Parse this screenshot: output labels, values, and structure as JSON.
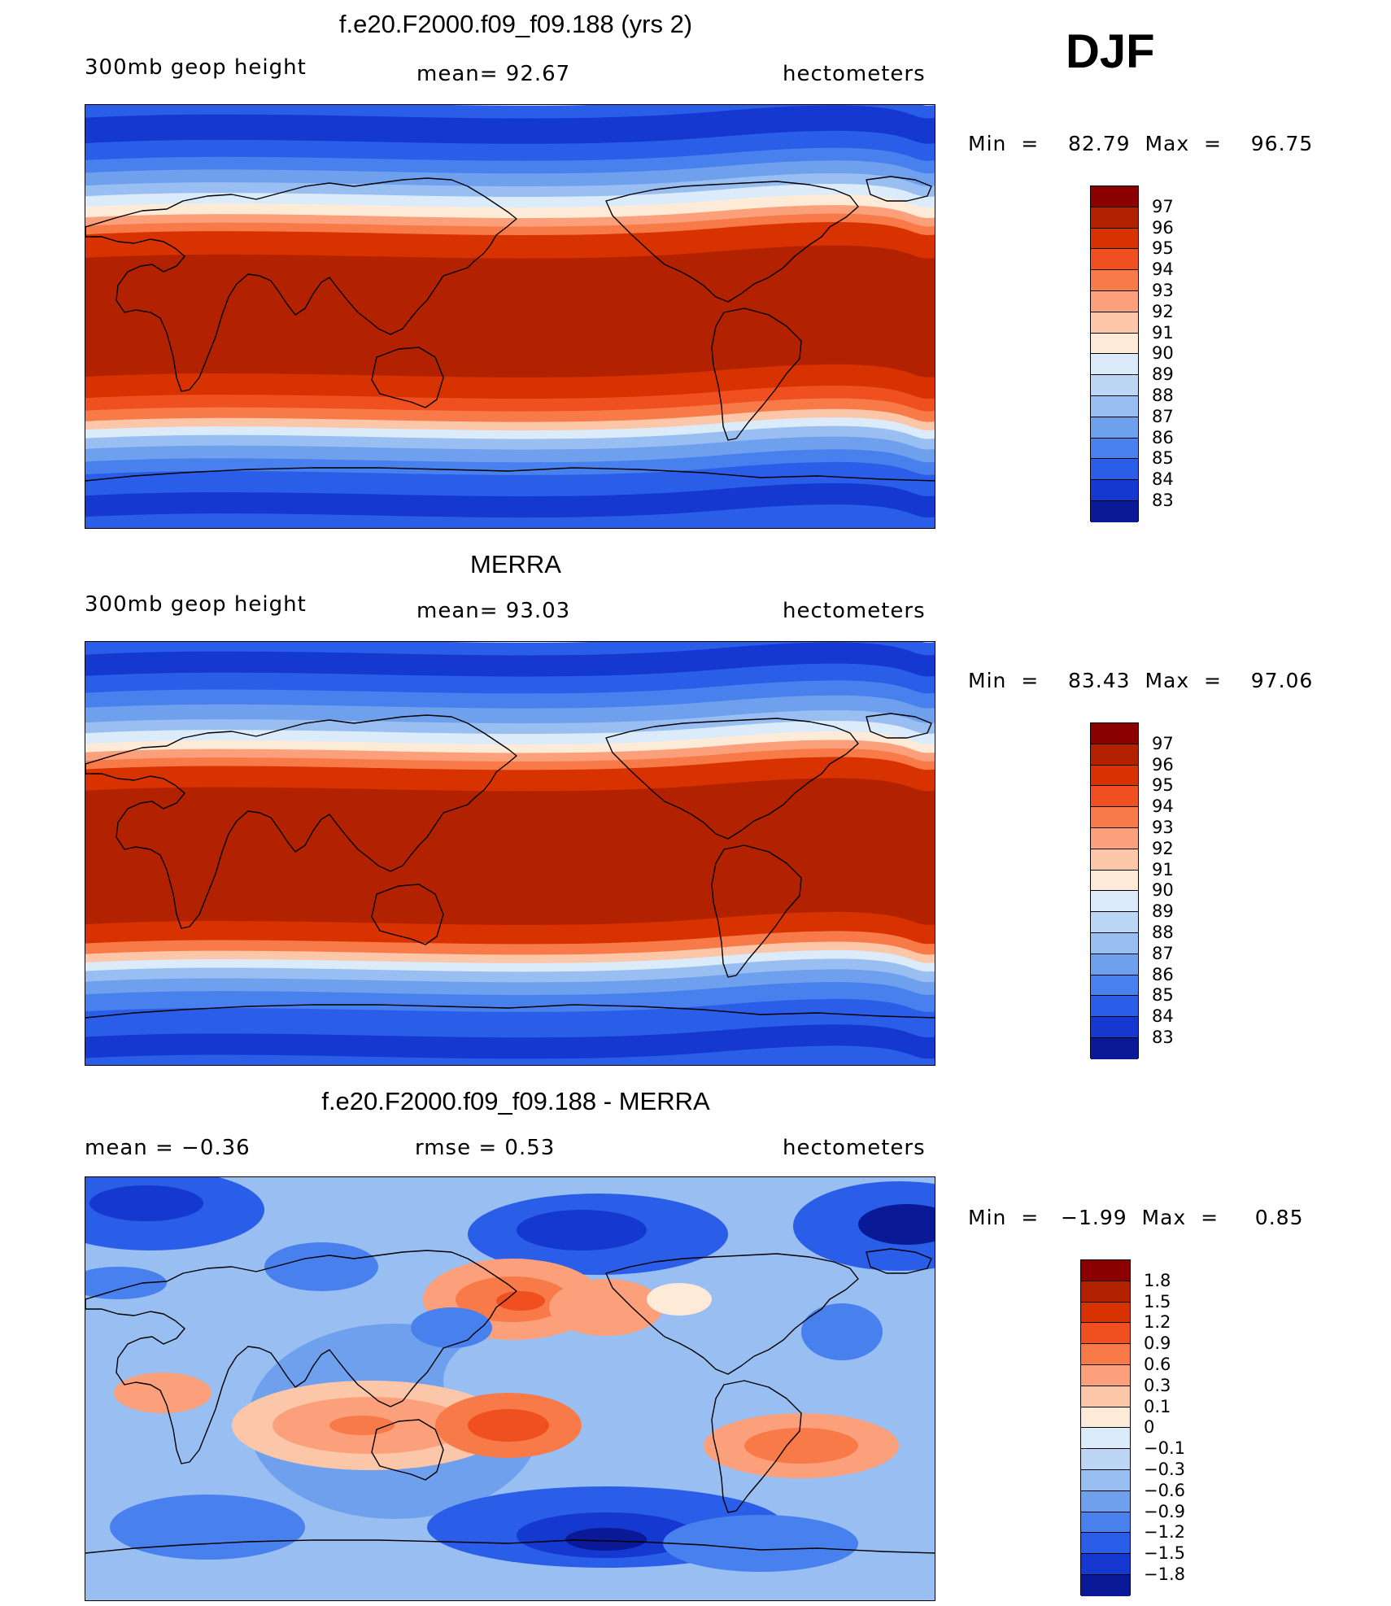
{
  "season": "DJF",
  "panels": [
    {
      "title": "f.e20.F2000.f09_f09.188 (yrs 2)",
      "left": "300mb  geop  height",
      "center": "mean=   92.67",
      "right": "hectometers",
      "minmax": "Min  =    82.79  Max  =    96.75",
      "bands": "abs_model"
    },
    {
      "title": "MERRA",
      "left": "300mb  geop  height",
      "center": "mean=   93.03",
      "right": "hectometers",
      "minmax": "Min  =    83.43  Max  =    97.06",
      "bands": "abs_obs"
    },
    {
      "title": "f.e20.F2000.f09_f09.188 - MERRA",
      "left": "mean  =    −0.36",
      "center": "rmse  =     0.53",
      "right": "hectometers",
      "minmax": "Min  =   −1.99  Max  =     0.85",
      "bands": "diff"
    }
  ],
  "colorbars": {
    "absolute": {
      "labels": [
        "97",
        "96",
        "95",
        "94",
        "93",
        "92",
        "91",
        "90",
        "89",
        "88",
        "87",
        "86",
        "85",
        "84",
        "83"
      ],
      "colors": [
        "#8b0000",
        "#b22200",
        "#d83200",
        "#f05020",
        "#f87a48",
        "#fba07a",
        "#fcc7a8",
        "#fdebd8",
        "#dcebfa",
        "#bcd6f6",
        "#98bef2",
        "#6fa0ee",
        "#4880ee",
        "#2a5ee8",
        "#1438d0",
        "#0a1a96"
      ]
    },
    "difference": {
      "labels": [
        "1.8",
        "1.5",
        "1.2",
        "0.9",
        "0.6",
        "0.3",
        "0.1",
        "0",
        "−0.1",
        "−0.3",
        "−0.6",
        "−0.9",
        "−1.2",
        "−1.5",
        "−1.8"
      ],
      "colors": [
        "#8b0000",
        "#b22200",
        "#d83200",
        "#f05020",
        "#f87a48",
        "#fba07a",
        "#fcc7a8",
        "#fdebd8",
        "#dcebfa",
        "#bcd6f6",
        "#98bef2",
        "#6fa0ee",
        "#4880ee",
        "#2a5ee8",
        "#1438d0",
        "#0a1a96"
      ]
    }
  }
}
